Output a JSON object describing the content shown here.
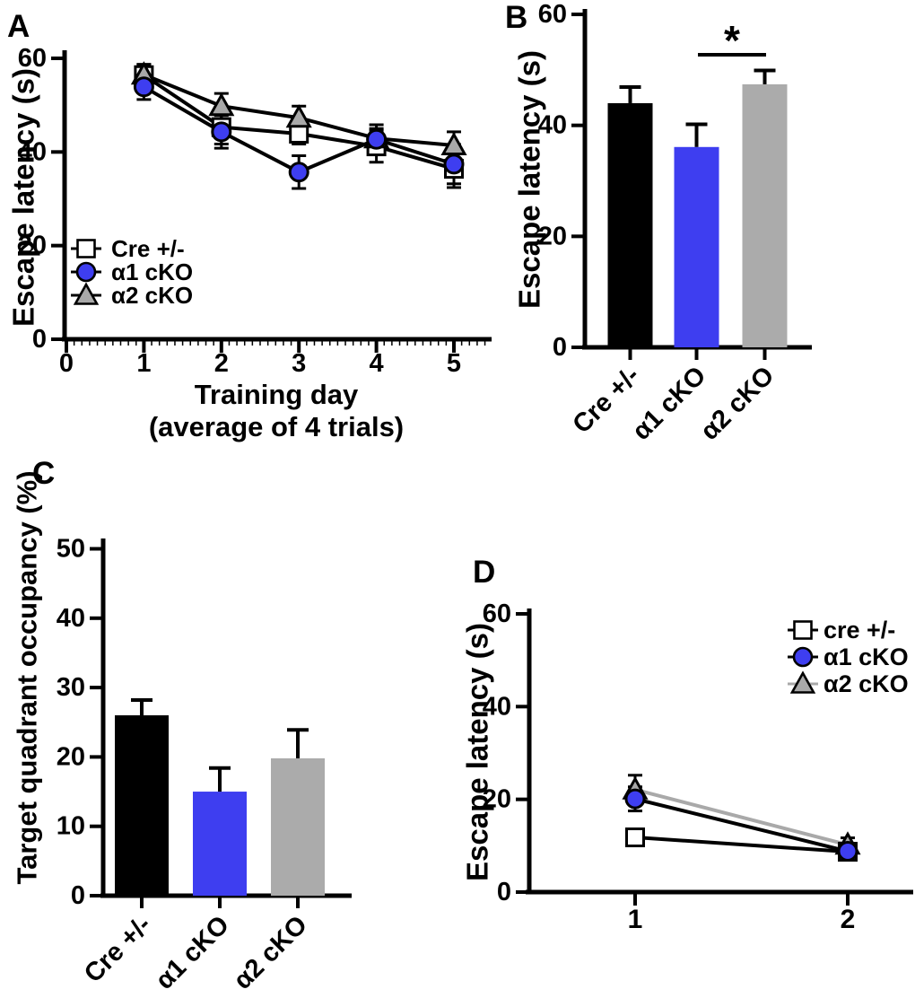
{
  "figure_background": "#ffffff",
  "colors": {
    "blue": "#3E3EF0",
    "gray_bar": "#ABABAB",
    "triangle_fill": "#A9A9A9",
    "black": "#000000",
    "white": "#FFFFFF",
    "gray_line": "#A9A9A9"
  },
  "chart_data": [
    {
      "panel_label": "A",
      "type": "line",
      "ylabel": "Escape latency (s)",
      "xlabel": "Training day",
      "xlabel_line2": "(average of 4 trials)",
      "ylim": [
        0,
        60
      ],
      "yticks": [
        0,
        20,
        40,
        60
      ],
      "xticks": [
        0,
        1,
        2,
        3,
        4,
        5
      ],
      "x": [
        1,
        2,
        3,
        4,
        5
      ],
      "grid": false,
      "legend_position": "inside-bottom-left",
      "series": [
        {
          "name": "Cre +/-",
          "marker": "open-square",
          "line_color": "#000000",
          "values": [
            56.4,
            45.3,
            43.9,
            41.2,
            36.4
          ],
          "sem": [
            2.3,
            3.6,
            2.2,
            3.4,
            4.0
          ]
        },
        {
          "name": "α1 cKO",
          "marker": "blue-circle",
          "line_color": "#000000",
          "values": [
            53.9,
            44.3,
            35.7,
            42.7,
            37.4
          ],
          "sem": [
            2.7,
            3.5,
            3.5,
            3.1,
            4.2
          ]
        },
        {
          "name": "α2 cKO",
          "marker": "gray-triangle",
          "line_color": "#000000",
          "values": [
            56.5,
            49.8,
            47.3,
            42.9,
            41.4
          ],
          "sem": [
            2.2,
            2.7,
            2.5,
            2.1,
            2.9
          ]
        }
      ]
    },
    {
      "panel_label": "B",
      "type": "bar",
      "ylabel": "Escape latency (s)",
      "ylim": [
        0,
        60
      ],
      "yticks": [
        0,
        20,
        40,
        60
      ],
      "categories": [
        "Cre +/-",
        "α1 cKO",
        "α2 cKO"
      ],
      "values": [
        44.0,
        36.1,
        47.4
      ],
      "sem": [
        2.9,
        4.1,
        2.5
      ],
      "bar_colors": [
        "#000000",
        "#3E3EF0",
        "#ABABAB"
      ],
      "significance": {
        "label": "*",
        "between": [
          "α1 cKO",
          "α2 cKO"
        ]
      }
    },
    {
      "panel_label": "C",
      "type": "bar",
      "ylabel": "Target quadrant occupancy (%)",
      "ylim": [
        0,
        50
      ],
      "yticks": [
        0,
        10,
        20,
        30,
        40,
        50
      ],
      "categories": [
        "Cre +/-",
        "α1 cKO",
        "α2 cKO"
      ],
      "values": [
        26.0,
        15.0,
        19.8
      ],
      "sem": [
        2.2,
        3.4,
        4.1
      ],
      "bar_colors": [
        "#000000",
        "#3E3EF0",
        "#ABABAB"
      ]
    },
    {
      "panel_label": "D",
      "type": "line",
      "ylabel": "Escape latency (s)",
      "ylim": [
        0,
        60
      ],
      "yticks": [
        0,
        20,
        40,
        60
      ],
      "xticks": [
        1,
        2
      ],
      "x": [
        1,
        2
      ],
      "grid": false,
      "legend_position": "inside-top-right",
      "series": [
        {
          "name": "cre +/-",
          "marker": "open-square",
          "line_color": "#000000",
          "values": [
            11.8,
            8.7
          ],
          "sem": [
            1.0,
            0.9
          ]
        },
        {
          "name": "α1 cKO",
          "marker": "blue-circle",
          "line_color": "#000000",
          "values": [
            20.1,
            8.8
          ],
          "sem": [
            2.6,
            1.0
          ]
        },
        {
          "name": "α2 cKO",
          "marker": "gray-triangle",
          "line_color": "#A9A9A9",
          "values": [
            22.1,
            10.2
          ],
          "sem": [
            3.1,
            1.5
          ]
        }
      ]
    }
  ]
}
